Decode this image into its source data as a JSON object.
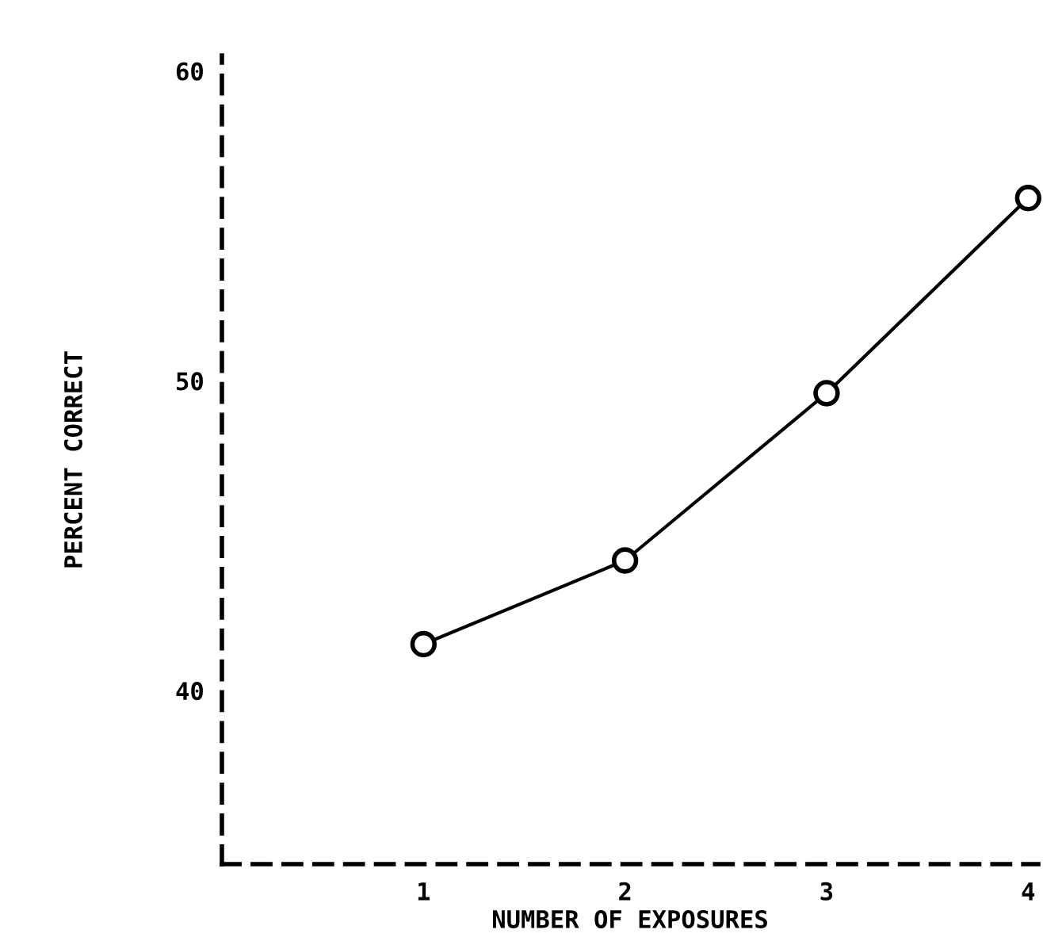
{
  "chart_data": {
    "type": "line",
    "xlabel": "NUMBER OF EXPOSURES",
    "ylabel": "PERCENT CORRECT",
    "x": [
      1,
      2,
      3,
      4
    ],
    "series": [
      {
        "color": "#000000",
        "values": [
          41.5,
          44.2,
          49.6,
          55.9
        ]
      }
    ],
    "xlim": [
      0,
      4.05
    ],
    "ylim": [
      34.4,
      60.5
    ],
    "xticks": [
      1,
      2,
      3,
      4
    ],
    "yticks": [
      40,
      50,
      60
    ],
    "grid": false,
    "legend": false,
    "marker": "circle",
    "line_style": "solid"
  }
}
